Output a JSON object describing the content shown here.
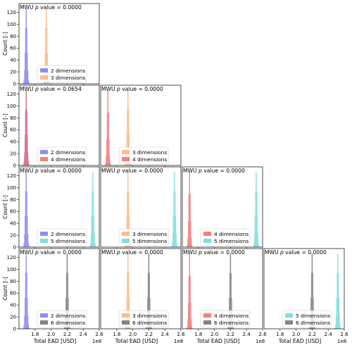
{
  "chart_data": {
    "type": "histogram",
    "layout": "lower-triangular grid 4x4",
    "ylabel": "Count [-]",
    "xlabel": "Total EAD [USD]",
    "x_multiplier": "1e8",
    "xlim": [
      1.6,
      2.6
    ],
    "ylim": [
      0,
      135
    ],
    "xticks": [
      "1.8",
      "2.0",
      "2.2",
      "2.4",
      "2.6"
    ],
    "yticks": [
      "0",
      "20",
      "40",
      "60",
      "80",
      "100",
      "120"
    ],
    "legend_position": "lower-center",
    "colors": {
      "2 dimensions": "#7b7bf0",
      "3 dimensions": "#f9b27a",
      "4 dimensions": "#f26a6a",
      "5 dimensions": "#6fd8d8",
      "6 dimensions": "#707070"
    },
    "series_stats": {
      "2 dimensions": {
        "mean": 1.69,
        "sd": 0.012
      },
      "3 dimensions": {
        "mean": 1.94,
        "sd": 0.012
      },
      "4 dimensions": {
        "mean": 1.69,
        "sd": 0.011
      },
      "5 dimensions": {
        "mean": 2.52,
        "sd": 0.012
      },
      "6 dimensions": {
        "mean": 2.2,
        "sd": 0.012
      }
    },
    "panels": [
      {
        "row": 0,
        "col": 0,
        "annotation_prefix": "MWU ",
        "annotation_p": "p",
        "annotation_suffix": " value = 0.0000",
        "series": [
          "2 dimensions",
          "3 dimensions"
        ]
      },
      {
        "row": 1,
        "col": 0,
        "annotation_prefix": "MWU ",
        "annotation_p": "p",
        "annotation_suffix": " value = 0.0654",
        "series": [
          "2 dimensions",
          "4 dimensions"
        ]
      },
      {
        "row": 1,
        "col": 1,
        "annotation_prefix": "MWU ",
        "annotation_p": "p",
        "annotation_suffix": " value = 0.0000",
        "series": [
          "3 dimensions",
          "4 dimensions"
        ]
      },
      {
        "row": 2,
        "col": 0,
        "annotation_prefix": "MWU ",
        "annotation_p": "p",
        "annotation_suffix": " value = 0.0000",
        "series": [
          "2 dimensions",
          "5 dimensions"
        ]
      },
      {
        "row": 2,
        "col": 1,
        "annotation_prefix": "MWU ",
        "annotation_p": "p",
        "annotation_suffix": " value = 0.0000",
        "series": [
          "3 dimensions",
          "5 dimensions"
        ]
      },
      {
        "row": 2,
        "col": 2,
        "annotation_prefix": "MWU ",
        "annotation_p": "p",
        "annotation_suffix": " value = 0.0000",
        "series": [
          "4 dimensions",
          "5 dimensions"
        ]
      },
      {
        "row": 3,
        "col": 0,
        "annotation_prefix": "MWU ",
        "annotation_p": "p",
        "annotation_suffix": " value = 0.0000",
        "series": [
          "2 dimensions",
          "6 dimensions"
        ]
      },
      {
        "row": 3,
        "col": 1,
        "annotation_prefix": "MWU ",
        "annotation_p": "p",
        "annotation_suffix": " value = 0.0000",
        "series": [
          "3 dimensions",
          "6 dimensions"
        ]
      },
      {
        "row": 3,
        "col": 2,
        "annotation_prefix": "MWU ",
        "annotation_p": "p",
        "annotation_suffix": " value = 0.0000",
        "series": [
          "4 dimensions",
          "6 dimensions"
        ]
      },
      {
        "row": 3,
        "col": 3,
        "annotation_prefix": "MWU ",
        "annotation_p": "p",
        "annotation_suffix": " value = 0.0000",
        "series": [
          "5 dimensions",
          "6 dimensions"
        ]
      }
    ]
  }
}
